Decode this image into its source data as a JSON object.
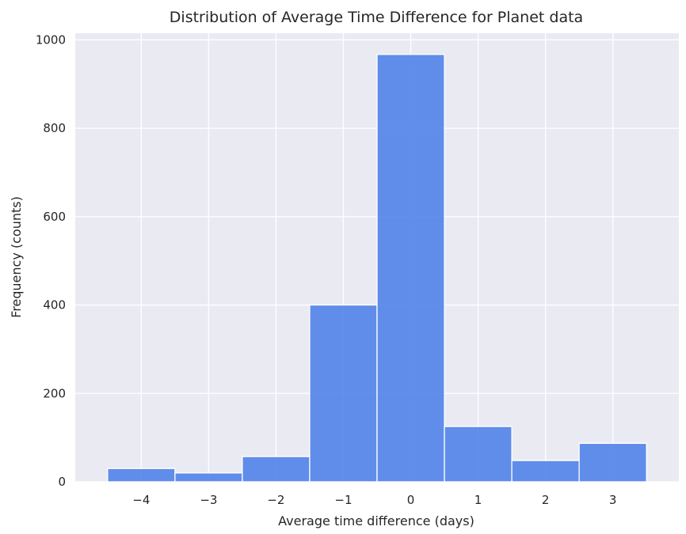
{
  "chart_data": {
    "type": "bar",
    "title": "Distribution of Average Time Difference for Planet data",
    "xlabel": "Average time difference (days)",
    "ylabel": "Frequency (counts)",
    "x_ticks": [
      -4,
      -3,
      -2,
      -1,
      0,
      1,
      2,
      3
    ],
    "x_tick_labels": [
      "−4",
      "−3",
      "−2",
      "−1",
      "0",
      "1",
      "2",
      "3"
    ],
    "y_ticks": [
      0,
      200,
      400,
      600,
      800,
      1000
    ],
    "y_tick_labels": [
      "0",
      "200",
      "400",
      "600",
      "800",
      "1000"
    ],
    "bin_width": 1,
    "categories": [
      -4,
      -3,
      -2,
      -1,
      0,
      1,
      2,
      3
    ],
    "values": [
      30,
      20,
      57,
      400,
      967,
      125,
      48,
      87
    ],
    "xlim": [
      -4.98,
      3.98
    ],
    "ylim": [
      0,
      1015
    ],
    "grid": true,
    "bar_color": "#4c7fe8",
    "background_color": "#eaeaf2"
  }
}
